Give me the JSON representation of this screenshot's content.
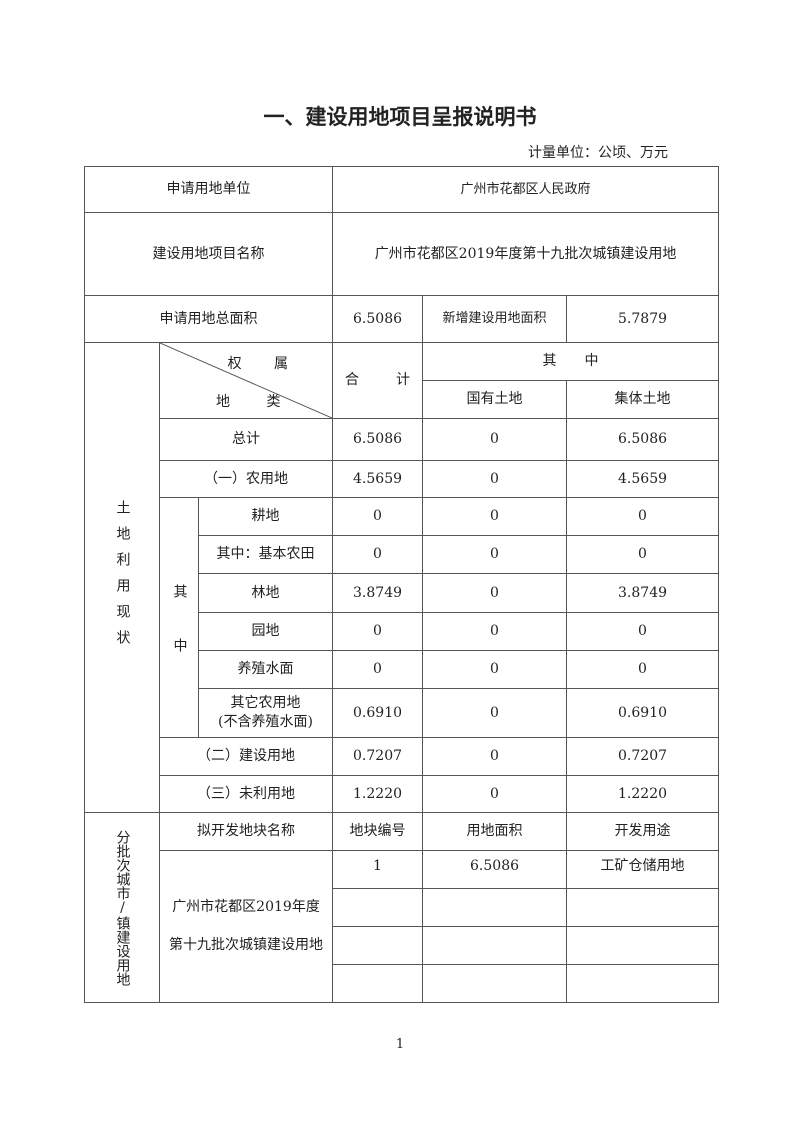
{
  "title": "一、建设用地项目呈报说明书",
  "unit": "计量单位：公顷、万元",
  "apply_unit": {
    "label": "申请用地单位",
    "value": "广州市花都区人民政府"
  },
  "project_name": {
    "label": "建设用地项目名称",
    "value": "广州市花都区2019年度第十九批次城镇建设用地"
  },
  "total_area": {
    "label": "申请用地总面积",
    "value": "6.5086",
    "new_label": "新增建设用地面积",
    "new_value": "5.7879"
  },
  "land_status": {
    "side_label": "土地利用现状",
    "header": {
      "ownership": "权 属",
      "category": "地 类",
      "total_a": "合",
      "total_b": "计",
      "of_which": "其　　中",
      "state": "国有土地",
      "collective": "集体土地"
    },
    "sub_label": "其中",
    "rows": [
      {
        "name": "总计",
        "total": "6.5086",
        "state": "0",
        "collective": "6.5086"
      },
      {
        "name": "（一）农用地",
        "total": "4.5659",
        "state": "0",
        "collective": "4.5659"
      },
      {
        "name": "耕地",
        "total": "0",
        "state": "0",
        "collective": "0"
      },
      {
        "name": "其中：基本农田",
        "total": "0",
        "state": "0",
        "collective": "0"
      },
      {
        "name": "林地",
        "total": "3.8749",
        "state": "0",
        "collective": "3.8749"
      },
      {
        "name": "园地",
        "total": "0",
        "state": "0",
        "collective": "0"
      },
      {
        "name": "养殖水面",
        "total": "0",
        "state": "0",
        "collective": "0"
      },
      {
        "name": "其它农用地",
        "name2": "(不含养殖水面)",
        "total": "0.6910",
        "state": "0",
        "collective": "0.6910"
      },
      {
        "name": "（二）建设用地",
        "total": "0.7207",
        "state": "0",
        "collective": "0.7207"
      },
      {
        "name": "（三）未利用地",
        "total": "1.2220",
        "state": "0",
        "collective": "1.2220"
      }
    ]
  },
  "batch": {
    "side_label": "分批次城市/镇建设用地",
    "headers": [
      "拟开发地块名称",
      "地块编号",
      "用地面积",
      "开发用途"
    ],
    "plot_name": "广州市花都区2019年度第十九批次城镇建设用地",
    "rows": [
      {
        "no": "1",
        "area": "6.5086",
        "use": "工矿仓储用地"
      }
    ]
  },
  "page_number": "1"
}
